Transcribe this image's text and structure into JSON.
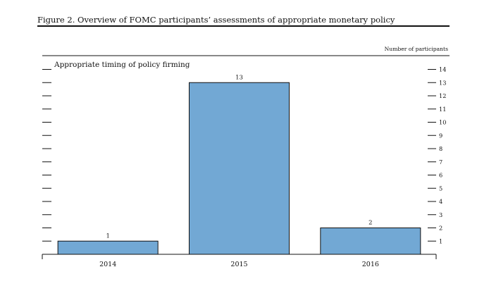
{
  "figure": {
    "title": "Figure 2. Overview of FOMC participants’ assessments of appropriate monetary policy"
  },
  "chart_data": {
    "type": "bar",
    "title": "Appropriate timing of policy firming",
    "ylabel": "Number of participants",
    "xlabel": "",
    "categories": [
      "2014",
      "2015",
      "2016"
    ],
    "values": [
      1,
      13,
      2
    ],
    "ylim": [
      0,
      14
    ],
    "yticks": [
      1,
      2,
      3,
      4,
      5,
      6,
      7,
      8,
      9,
      10,
      11,
      12,
      13,
      14
    ],
    "y_axis_side": "right",
    "grid": false,
    "bar_color": "#72a8d4",
    "bar_edge_color": "#111111"
  }
}
